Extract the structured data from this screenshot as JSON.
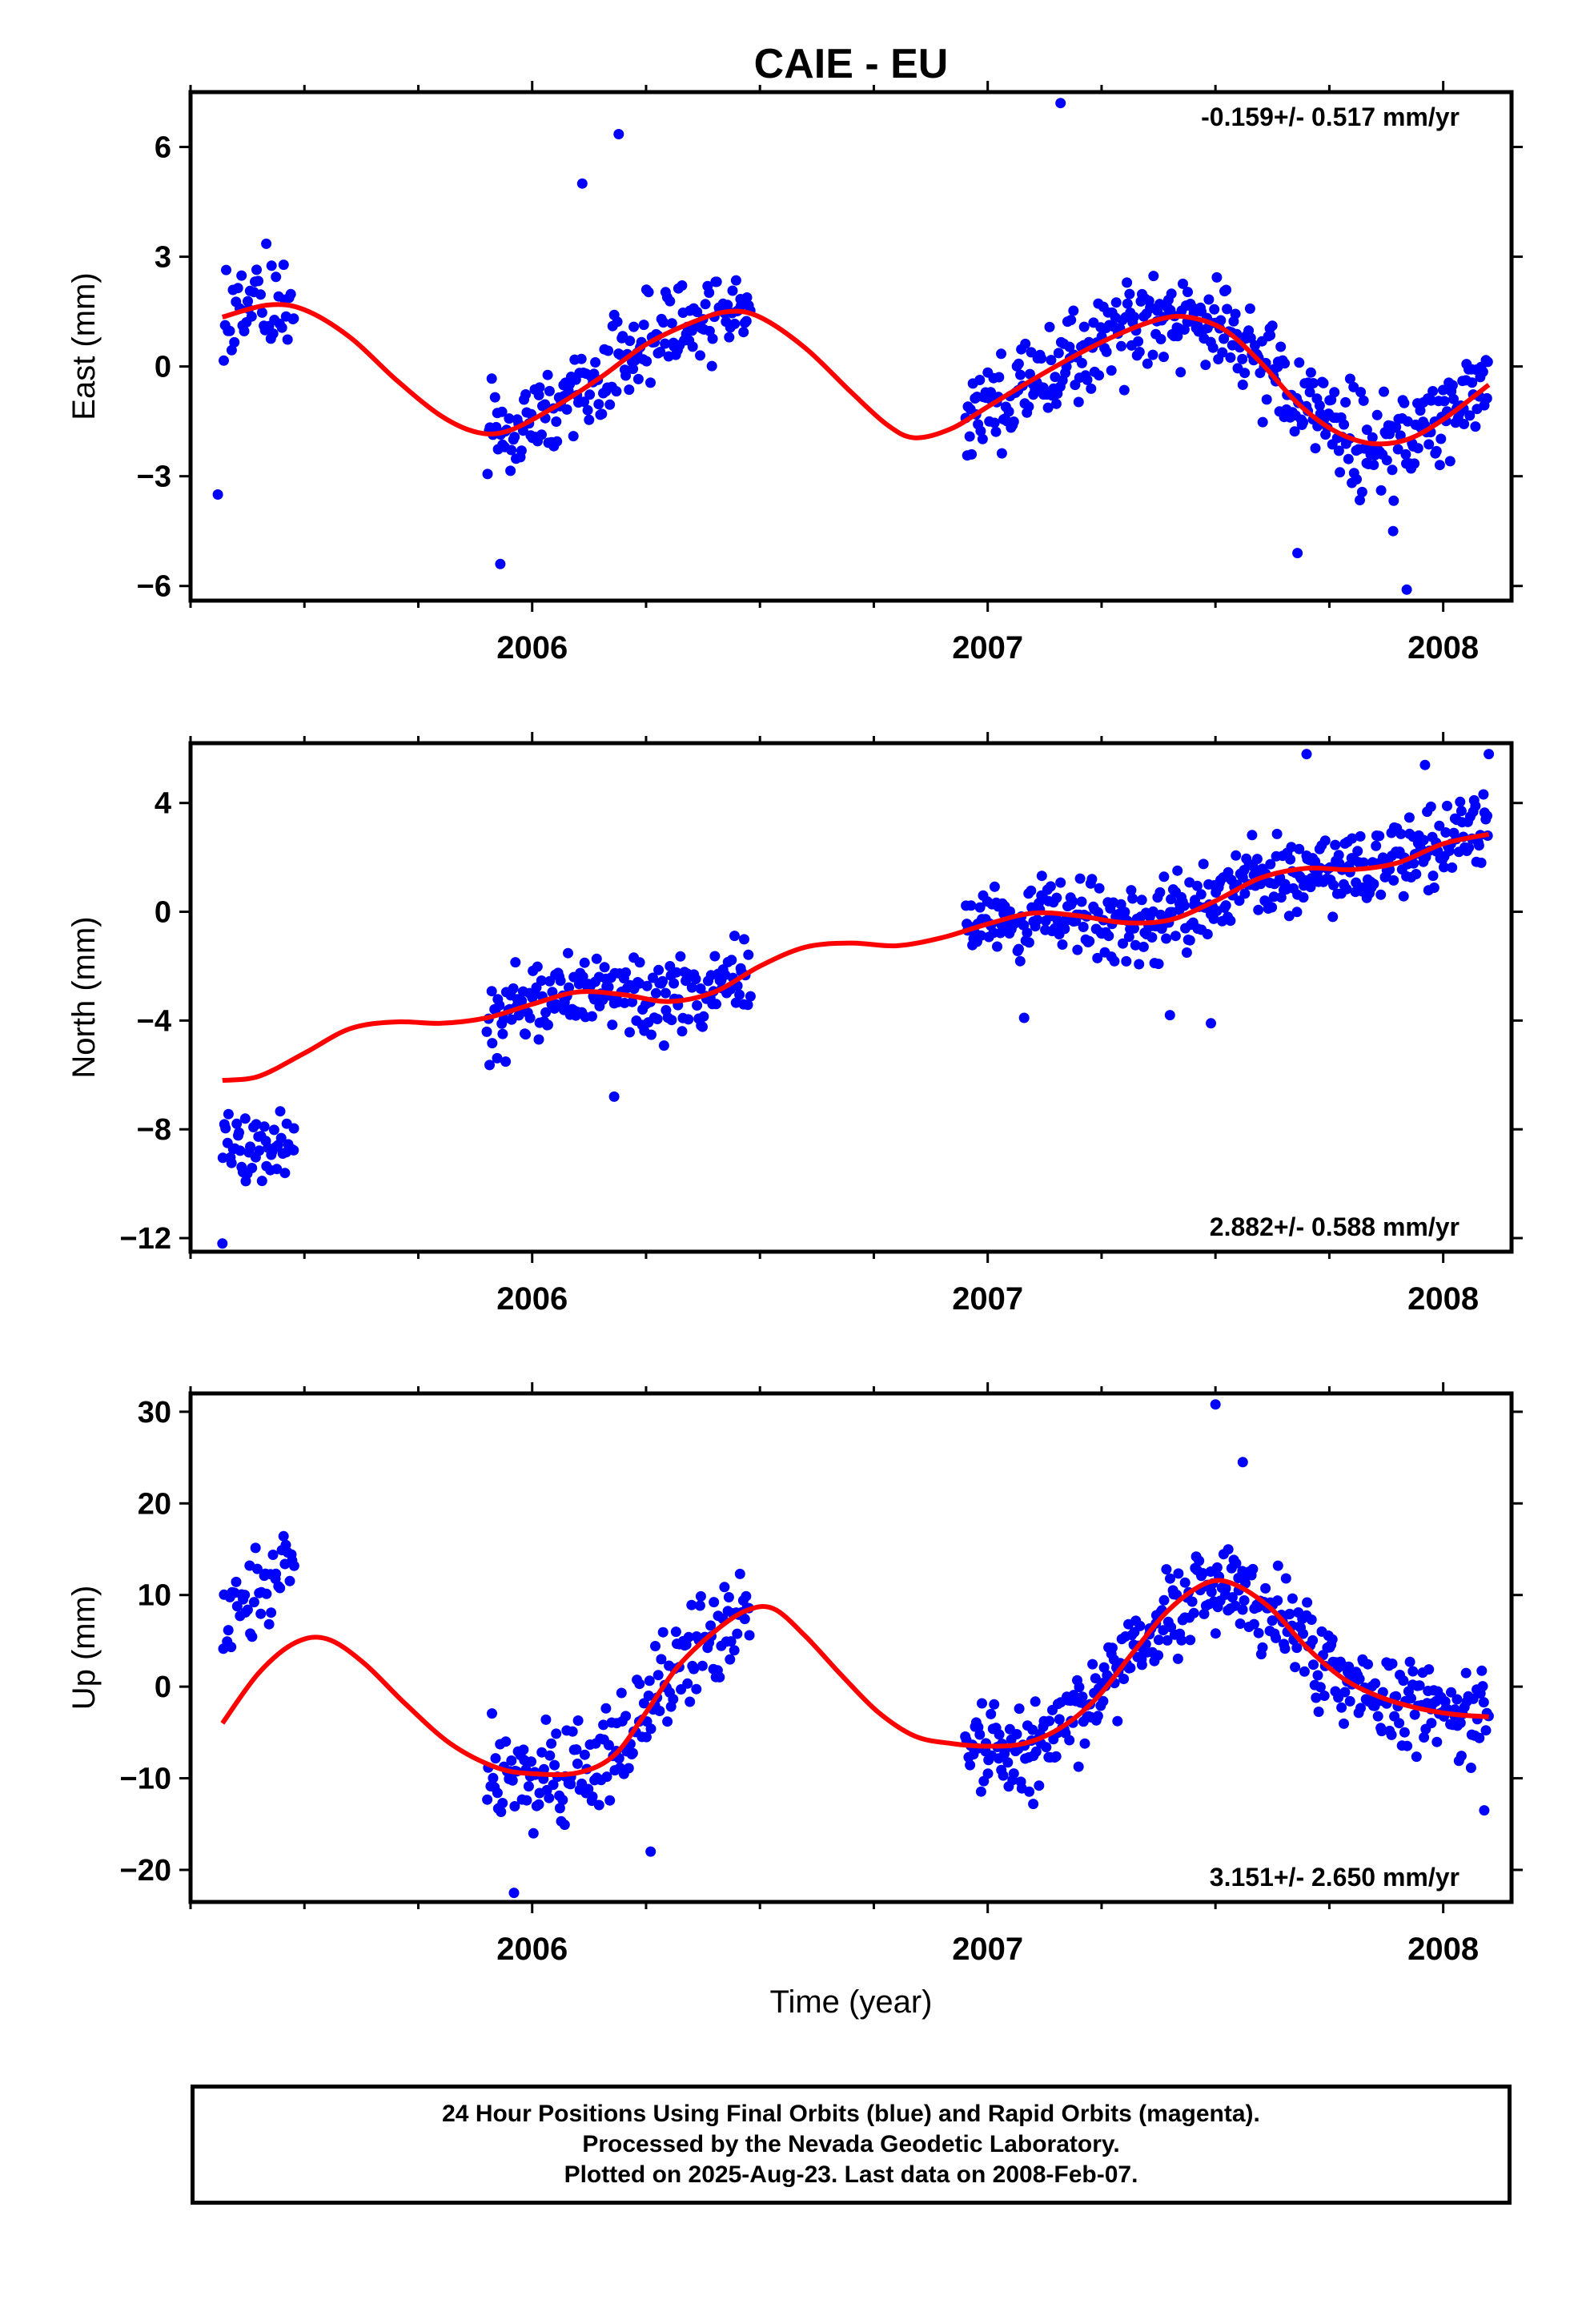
{
  "colors": {
    "points": "#0000ff",
    "fit": "#ff0000",
    "frame": "#000000"
  },
  "chart_data": [
    {
      "type": "scatter",
      "title": "CAIE - EU",
      "xlabel": "",
      "ylabel": "East (mm)",
      "xlim": [
        2005.25,
        2008.15
      ],
      "ylim": [
        -6.4,
        7.5
      ],
      "yticks": [
        6,
        3,
        0,
        -3,
        -6
      ],
      "ytick_labels": [
        "6",
        "3",
        "0",
        "−3",
        "−6"
      ],
      "xticks": [
        2006,
        2007,
        2008
      ],
      "xtick_labels": [
        "2006",
        "2007",
        "2008"
      ],
      "rate_label": "-0.159+/- 0.517 mm/yr",
      "rate_position": "top-right",
      "series": [
        {
          "kind": "points",
          "segments": [
            {
              "x0": 2005.32,
              "x1": 2005.48,
              "n": 45,
              "amp": 1.6,
              "phase": 0.45,
              "noise": 1.2,
              "seed": 11
            },
            {
              "x0": 2005.9,
              "x1": 2006.48,
              "n": 185,
              "amp": 1.6,
              "phase": 0.45,
              "noise": 1.1,
              "seed": 12
            },
            {
              "x0": 2006.95,
              "x1": 2008.1,
              "n": 400,
              "amp": 1.6,
              "phase": 0.45,
              "noise": 1.1,
              "seed": 13
            }
          ],
          "outliers": [
            [
              2005.31,
              -3.5
            ],
            [
              2006.11,
              5.0
            ],
            [
              2006.19,
              6.35
            ],
            [
              2007.16,
              7.2
            ],
            [
              2007.89,
              -4.5
            ],
            [
              2007.92,
              -6.1
            ],
            [
              2005.93,
              -5.4
            ],
            [
              2007.68,
              -5.1
            ]
          ]
        },
        {
          "kind": "fit",
          "points": [
            [
              2005.32,
              1.35
            ],
            [
              2005.42,
              1.68
            ],
            [
              2005.5,
              1.55
            ],
            [
              2005.6,
              0.8
            ],
            [
              2005.7,
              -0.35
            ],
            [
              2005.8,
              -1.35
            ],
            [
              2005.88,
              -1.8
            ],
            [
              2005.95,
              -1.75
            ],
            [
              2006.05,
              -1.1
            ],
            [
              2006.15,
              -0.3
            ],
            [
              2006.25,
              0.6
            ],
            [
              2006.35,
              1.2
            ],
            [
              2006.43,
              1.5
            ],
            [
              2006.5,
              1.35
            ],
            [
              2006.6,
              0.5
            ],
            [
              2006.7,
              -0.7
            ],
            [
              2006.78,
              -1.6
            ],
            [
              2006.84,
              -1.95
            ],
            [
              2006.92,
              -1.7
            ],
            [
              2007.0,
              -1.1
            ],
            [
              2007.1,
              -0.35
            ],
            [
              2007.2,
              0.35
            ],
            [
              2007.3,
              0.95
            ],
            [
              2007.38,
              1.3
            ],
            [
              2007.44,
              1.35
            ],
            [
              2007.52,
              1.0
            ],
            [
              2007.6,
              0.1
            ],
            [
              2007.68,
              -1.0
            ],
            [
              2007.76,
              -1.75
            ],
            [
              2007.84,
              -2.1
            ],
            [
              2007.92,
              -2.0
            ],
            [
              2008.0,
              -1.45
            ],
            [
              2008.1,
              -0.5
            ]
          ]
        }
      ]
    },
    {
      "type": "scatter",
      "title": "",
      "xlabel": "",
      "ylabel": "North (mm)",
      "xlim": [
        2005.25,
        2008.15
      ],
      "ylim": [
        -12.5,
        6.2
      ],
      "yticks": [
        4,
        0,
        -4,
        -8,
        -12
      ],
      "ytick_labels": [
        "4",
        "0",
        "−4",
        "−8",
        "−12"
      ],
      "xticks": [
        2006,
        2007,
        2008
      ],
      "xtick_labels": [
        "2006",
        "2007",
        "2008"
      ],
      "rate_label": "2.882+/- 0.588 mm/yr",
      "rate_position": "bottom-right",
      "series": [
        {
          "kind": "points",
          "segments": [
            {
              "x0": 2005.32,
              "x1": 2005.48,
              "n": 50,
              "offset": -8.7,
              "noise": 1.0,
              "seed": 21
            },
            {
              "x0": 2005.9,
              "x1": 2006.48,
              "n": 190,
              "offset": -2.6,
              "trend": 3.0,
              "noise": 1.3,
              "seed": 22
            },
            {
              "x0": 2006.95,
              "x1": 2008.1,
              "n": 410,
              "offset": -0.2,
              "trend": 2.6,
              "noise": 1.3,
              "seed": 23
            }
          ],
          "outliers": [
            [
              2005.32,
              -12.2
            ],
            [
              2006.18,
              -6.8
            ],
            [
              2007.49,
              -4.1
            ],
            [
              2007.7,
              5.8
            ],
            [
              2007.96,
              5.4
            ],
            [
              2008.1,
              5.8
            ],
            [
              2007.4,
              -3.8
            ],
            [
              2007.08,
              -3.9
            ]
          ]
        },
        {
          "kind": "fit",
          "points": [
            [
              2005.32,
              -6.2
            ],
            [
              2005.4,
              -6.05
            ],
            [
              2005.5,
              -5.2
            ],
            [
              2005.6,
              -4.3
            ],
            [
              2005.7,
              -4.05
            ],
            [
              2005.8,
              -4.1
            ],
            [
              2005.9,
              -3.9
            ],
            [
              2006.0,
              -3.4
            ],
            [
              2006.1,
              -2.95
            ],
            [
              2006.2,
              -3.05
            ],
            [
              2006.3,
              -3.3
            ],
            [
              2006.4,
              -2.95
            ],
            [
              2006.5,
              -2.0
            ],
            [
              2006.6,
              -1.3
            ],
            [
              2006.7,
              -1.15
            ],
            [
              2006.8,
              -1.25
            ],
            [
              2006.9,
              -0.95
            ],
            [
              2007.0,
              -0.45
            ],
            [
              2007.1,
              -0.05
            ],
            [
              2007.2,
              -0.15
            ],
            [
              2007.3,
              -0.4
            ],
            [
              2007.4,
              -0.3
            ],
            [
              2007.5,
              0.4
            ],
            [
              2007.6,
              1.25
            ],
            [
              2007.7,
              1.6
            ],
            [
              2007.8,
              1.55
            ],
            [
              2007.9,
              1.8
            ],
            [
              2008.0,
              2.5
            ],
            [
              2008.1,
              2.85
            ]
          ]
        }
      ]
    },
    {
      "type": "scatter",
      "title": "",
      "xlabel": "Time (year)",
      "ylabel": "Up (mm)",
      "xlim": [
        2005.25,
        2008.15
      ],
      "ylim": [
        -23.5,
        32.0
      ],
      "yticks": [
        30,
        20,
        10,
        0,
        -10,
        -20
      ],
      "ytick_labels": [
        "30",
        "20",
        "10",
        "0",
        "−10",
        "−20"
      ],
      "xticks": [
        2006,
        2007,
        2008
      ],
      "xtick_labels": [
        "2006",
        "2007",
        "2008"
      ],
      "rate_label": "3.151+/- 2.650 mm/yr",
      "rate_position": "bottom-right",
      "series": [
        {
          "kind": "points",
          "segments": [
            {
              "x0": 2005.32,
              "x1": 2005.48,
              "n": 45,
              "offset": 10.0,
              "trend": 45,
              "noise": 3.5,
              "seed": 31
            },
            {
              "x0": 2005.9,
              "x1": 2006.48,
              "n": 185,
              "fitfollow": true,
              "noise": 4.5,
              "seed": 32
            },
            {
              "x0": 2006.95,
              "x1": 2008.1,
              "n": 400,
              "fitfollow": true,
              "noise": 4.2,
              "seed": 33
            }
          ],
          "outliers": [
            [
              2007.5,
              30.8
            ],
            [
              2007.56,
              24.5
            ],
            [
              2005.96,
              -22.5
            ],
            [
              2006.26,
              -18.0
            ],
            [
              2007.1,
              -12.8
            ],
            [
              2008.09,
              -13.5
            ]
          ]
        },
        {
          "kind": "fit",
          "points": [
            [
              2005.32,
              -4.0
            ],
            [
              2005.4,
              1.5
            ],
            [
              2005.48,
              4.8
            ],
            [
              2005.55,
              5.2
            ],
            [
              2005.63,
              2.6
            ],
            [
              2005.72,
              -1.8
            ],
            [
              2005.82,
              -6.2
            ],
            [
              2005.92,
              -8.8
            ],
            [
              2006.0,
              -9.5
            ],
            [
              2006.1,
              -9.4
            ],
            [
              2006.18,
              -7.5
            ],
            [
              2006.25,
              -2.8
            ],
            [
              2006.32,
              2.2
            ],
            [
              2006.4,
              6.0
            ],
            [
              2006.47,
              8.3
            ],
            [
              2006.53,
              8.5
            ],
            [
              2006.6,
              5.5
            ],
            [
              2006.68,
              1.2
            ],
            [
              2006.76,
              -2.8
            ],
            [
              2006.84,
              -5.4
            ],
            [
              2006.92,
              -6.2
            ],
            [
              2007.0,
              -6.5
            ],
            [
              2007.08,
              -6.2
            ],
            [
              2007.16,
              -4.5
            ],
            [
              2007.24,
              -1.2
            ],
            [
              2007.32,
              3.8
            ],
            [
              2007.4,
              8.5
            ],
            [
              2007.48,
              11.3
            ],
            [
              2007.54,
              11.2
            ],
            [
              2007.62,
              8.6
            ],
            [
              2007.7,
              4.3
            ],
            [
              2007.78,
              0.9
            ],
            [
              2007.86,
              -1.1
            ],
            [
              2007.94,
              -2.3
            ],
            [
              2008.02,
              -3.0
            ],
            [
              2008.1,
              -3.3
            ]
          ]
        }
      ]
    }
  ],
  "footer": {
    "line1": "24 Hour Positions Using Final Orbits (blue) and Rapid Orbits (magenta).",
    "line2": "Processed by the Nevada Geodetic Laboratory.",
    "line3": "Plotted on 2025-Aug-23. Last data on 2008-Feb-07."
  }
}
